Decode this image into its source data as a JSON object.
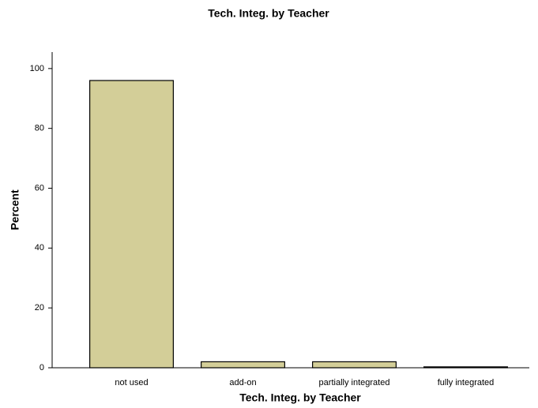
{
  "chart_data": {
    "type": "bar",
    "title": "Tech. Integ. by Teacher",
    "x_label": "Tech. Integ. by Teacher",
    "y_label": "Percent",
    "categories": [
      "not used",
      "add-on",
      "partially integrated",
      "fully integrated"
    ],
    "values": [
      96,
      2,
      2,
      0.3
    ],
    "color": "#d3ce98",
    "ylim": [
      0,
      105.5
    ],
    "yticks": [
      0,
      20,
      40,
      60,
      80,
      100
    ],
    "grid": false
  }
}
